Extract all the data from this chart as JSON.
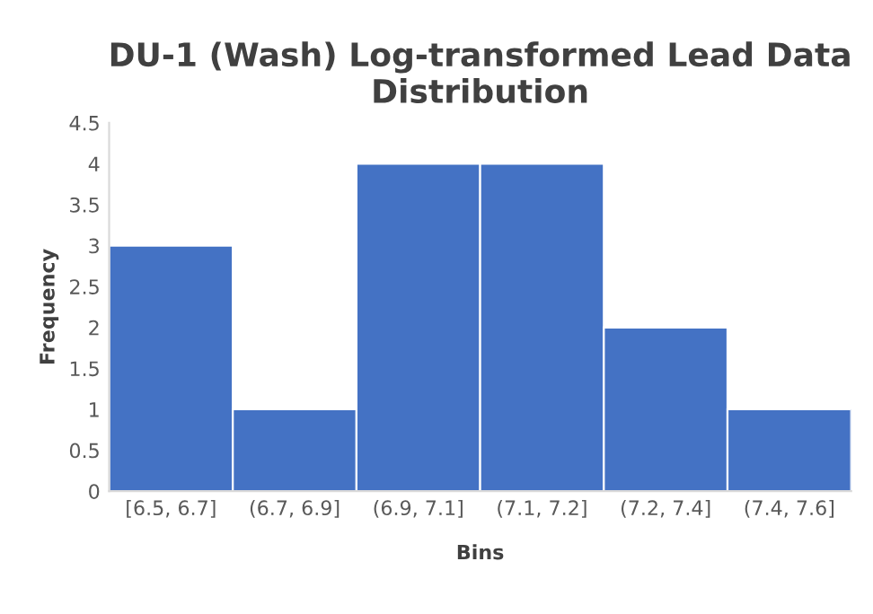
{
  "chart_data": {
    "type": "bar",
    "title": "DU-1 (Wash) Log-transformed Lead Data Distribution",
    "xlabel": "Bins",
    "ylabel": "Frequency",
    "categories": [
      "[6.5, 6.7]",
      "(6.7, 6.9]",
      "(6.9, 7.1]",
      "(7.1, 7.2]",
      "(7.2, 7.4]",
      "(7.4, 7.6]"
    ],
    "values": [
      3,
      1,
      4,
      4,
      2,
      1
    ],
    "color": "#4472c4",
    "ylim": [
      0,
      4.5
    ],
    "yticks": [
      0,
      0.5,
      1,
      1.5,
      2,
      2.5,
      3,
      3.5,
      4,
      4.5
    ],
    "grid": false,
    "legend": false
  }
}
